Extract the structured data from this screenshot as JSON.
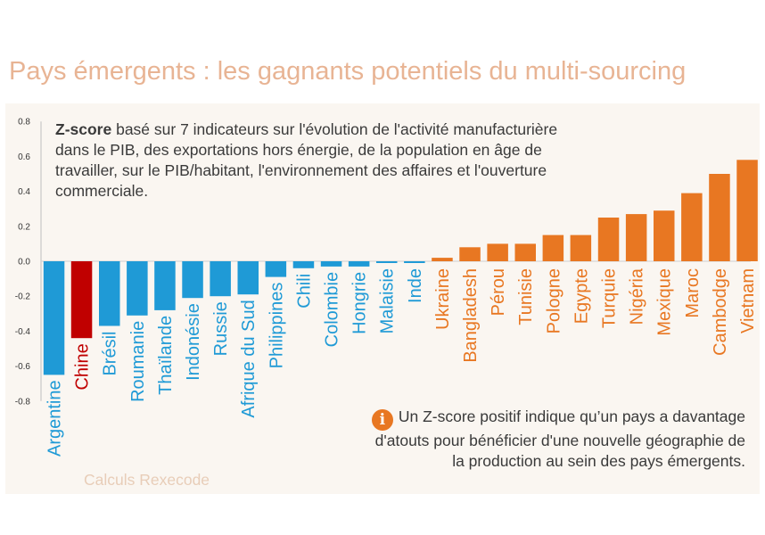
{
  "title": "Pays émergents : les gagnants potentiels du multi-sourcing",
  "description": {
    "bold": "Z-score",
    "rest": " basé sur 7 indicateurs sur l'évolution de l'activité manufacturière dans le PIB, des exportations hors énergie, de la population en âge de travailler, sur le PIB/habitant, l'environnement des affaires et l'ouverture commerciale."
  },
  "note": "Un Z-score positif indique qu’un pays a davantage d'atouts  pour bénéficier d'une nouvelle géographie de la production au sein des pays émergents.",
  "note_icon": "info-icon",
  "source": "Calculs Rexecode",
  "colors": {
    "negative": "#1f9ad6",
    "highlight": "#c00000",
    "positive": "#e87722",
    "background": "#faf6f1",
    "title": "#e8b494",
    "source": "#e8cdb8"
  },
  "chart_data": {
    "type": "bar",
    "categories": [
      "Argentine",
      "Chine",
      "Brésil",
      "Roumanie",
      "Thaïlande",
      "Indonésie",
      "Russie",
      "Afrique du Sud",
      "Philippines",
      "Chili",
      "Colombie",
      "Hongrie",
      "Malaisie",
      "Inde",
      "Ukraine",
      "Bangladesh",
      "Pérou",
      "Tunisie",
      "Pologne",
      "Egypte",
      "Turquie",
      "Nigéria",
      "Mexique",
      "Maroc",
      "Cambodge",
      "Vietnam"
    ],
    "values": [
      -0.65,
      -0.44,
      -0.37,
      -0.31,
      -0.28,
      -0.21,
      -0.2,
      -0.19,
      -0.09,
      -0.04,
      -0.03,
      -0.03,
      -0.01,
      -0.01,
      0.02,
      0.08,
      0.1,
      0.1,
      0.15,
      0.15,
      0.25,
      0.27,
      0.29,
      0.39,
      0.5,
      0.58
    ],
    "highlight": "Chine",
    "yticks": [
      "0.8",
      "0.6",
      "0.4",
      "0.2",
      "0.0",
      "-0.2",
      "-0.4",
      "-0.6",
      "-0.8"
    ],
    "ylim": [
      -0.8,
      0.8
    ],
    "title": "",
    "xlabel": "",
    "ylabel": ""
  }
}
